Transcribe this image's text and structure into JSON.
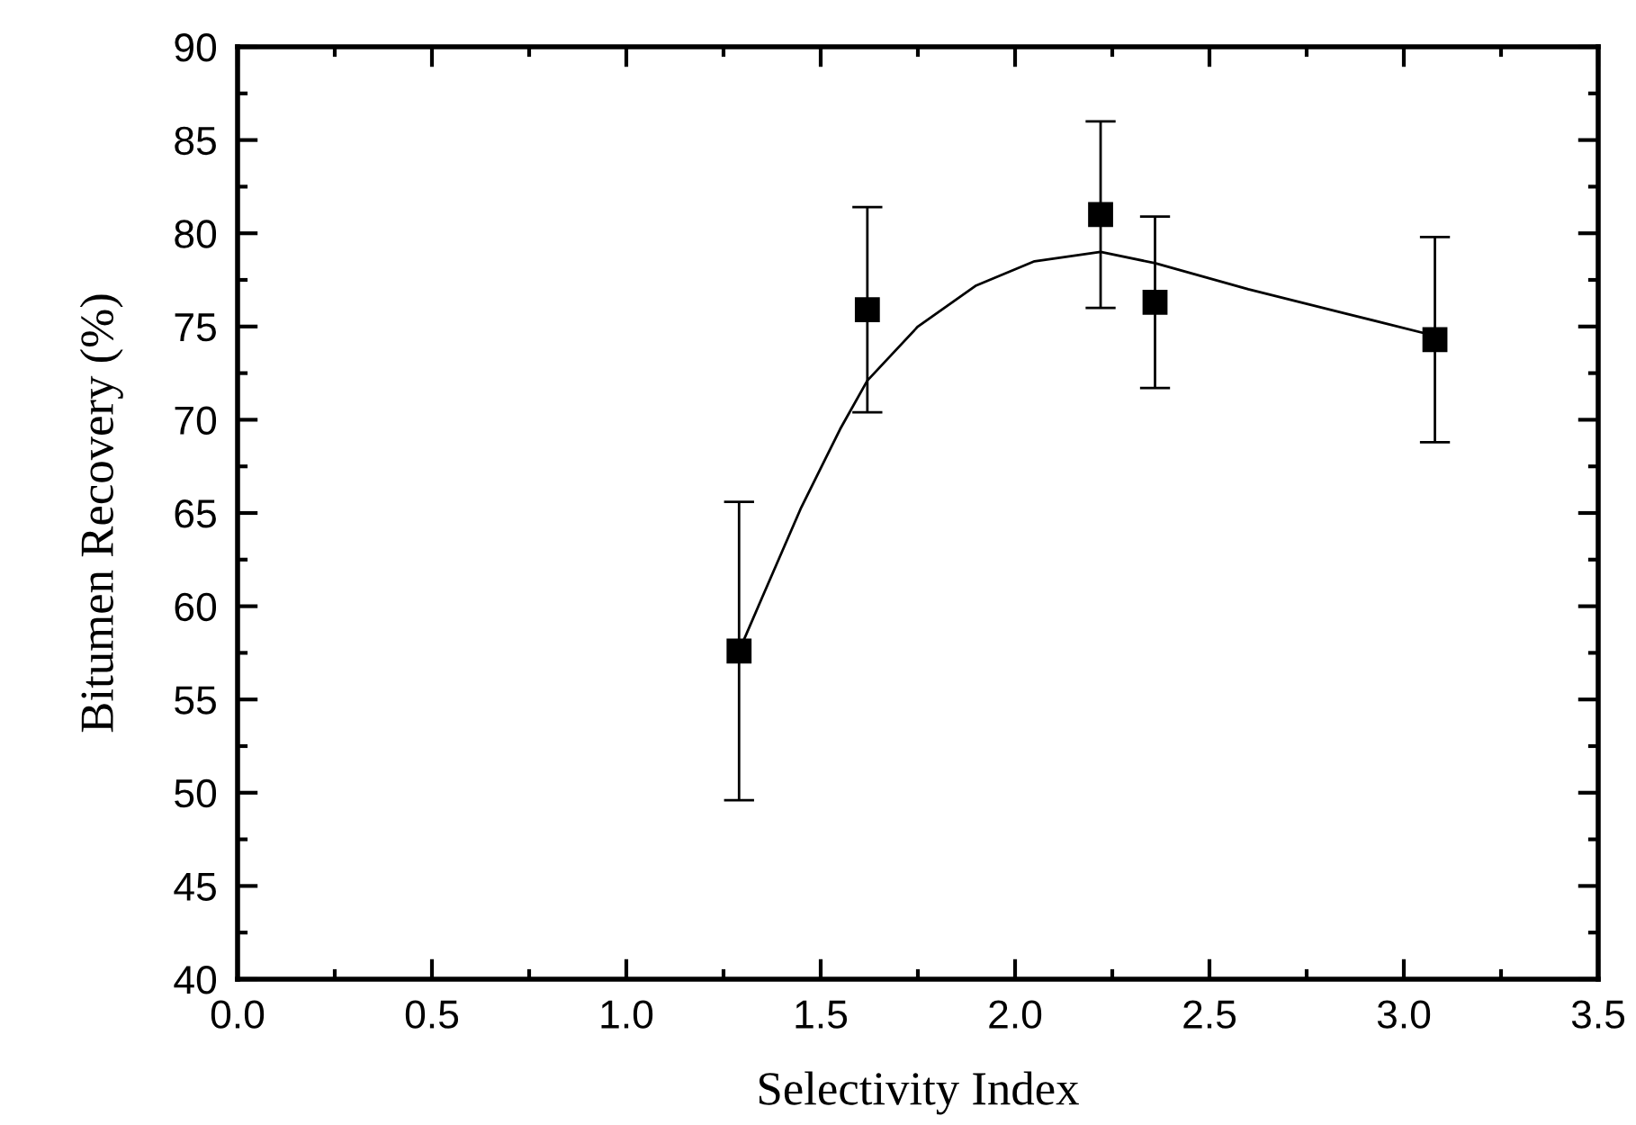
{
  "chart_data": {
    "type": "scatter",
    "xlabel": "Selectivity Index",
    "ylabel": "Bitumen Recovery (%)",
    "xlim": [
      0,
      3.5
    ],
    "xticks": [
      {
        "value": 0,
        "label": "0.0"
      },
      {
        "value": 0.5,
        "label": "0.5"
      },
      {
        "value": 1,
        "label": "1.0"
      },
      {
        "value": 1.5,
        "label": "1.5"
      },
      {
        "value": 2,
        "label": "2.0"
      },
      {
        "value": 2.5,
        "label": "2.5"
      },
      {
        "value": 3,
        "label": "3.0"
      },
      {
        "value": 3.5,
        "label": "3.5"
      }
    ],
    "ylim": [
      40,
      90
    ],
    "yticks": [
      40,
      45,
      50,
      55,
      60,
      65,
      70,
      75,
      80,
      85,
      90
    ],
    "grid": false,
    "legend": false,
    "series": [
      {
        "color": "#000000",
        "marker": "square",
        "x": [
          1.29,
          1.62,
          2.22,
          2.36,
          3.08
        ],
        "values": [
          57.6,
          75.9,
          81.0,
          76.3,
          74.3
        ],
        "errors": [
          8.0,
          5.5,
          5.0,
          4.6,
          5.5
        ]
      },
      {
        "type": "line",
        "color": "#000000",
        "marker": "none",
        "line_style": "solid",
        "x": [
          1.29,
          1.35,
          1.45,
          1.55,
          1.62,
          1.75,
          1.9,
          2.05,
          2.22,
          2.36,
          2.6,
          2.85,
          3.08
        ],
        "values": [
          57.6,
          60.5,
          65.3,
          69.5,
          72.1,
          75.0,
          77.2,
          78.5,
          79.0,
          78.4,
          77.0,
          75.7,
          74.5
        ]
      }
    ]
  }
}
